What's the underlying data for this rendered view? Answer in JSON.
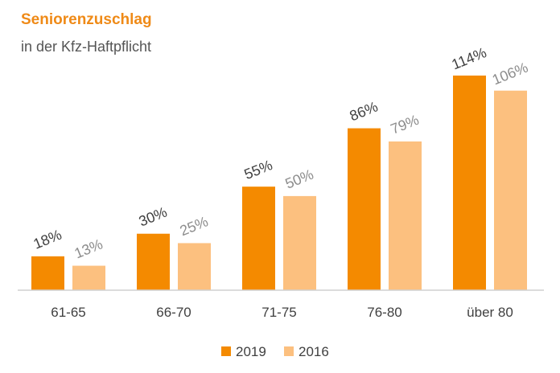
{
  "chart_data": {
    "type": "bar",
    "title": "Seniorenzuschlag",
    "subtitle": "in der Kfz-Haftpflicht",
    "categories": [
      "61-65",
      "66-70",
      "71-75",
      "76-80",
      "über 80"
    ],
    "series": [
      {
        "name": "2019",
        "values": [
          18,
          30,
          55,
          86,
          114
        ],
        "labels": [
          "18%",
          "30%",
          "55%",
          "86%",
          "114%"
        ],
        "color": "#f48a00",
        "label_color": "#404040"
      },
      {
        "name": "2016",
        "values": [
          13,
          25,
          50,
          79,
          106
        ],
        "labels": [
          "13%",
          "25%",
          "50%",
          "79%",
          "106%"
        ],
        "color": "#fcc07f",
        "label_color": "#8c8c8c"
      }
    ],
    "ylim": [
      0,
      114
    ],
    "grid": false,
    "legend": "bottom-center",
    "xlabel": "",
    "ylabel": ""
  }
}
